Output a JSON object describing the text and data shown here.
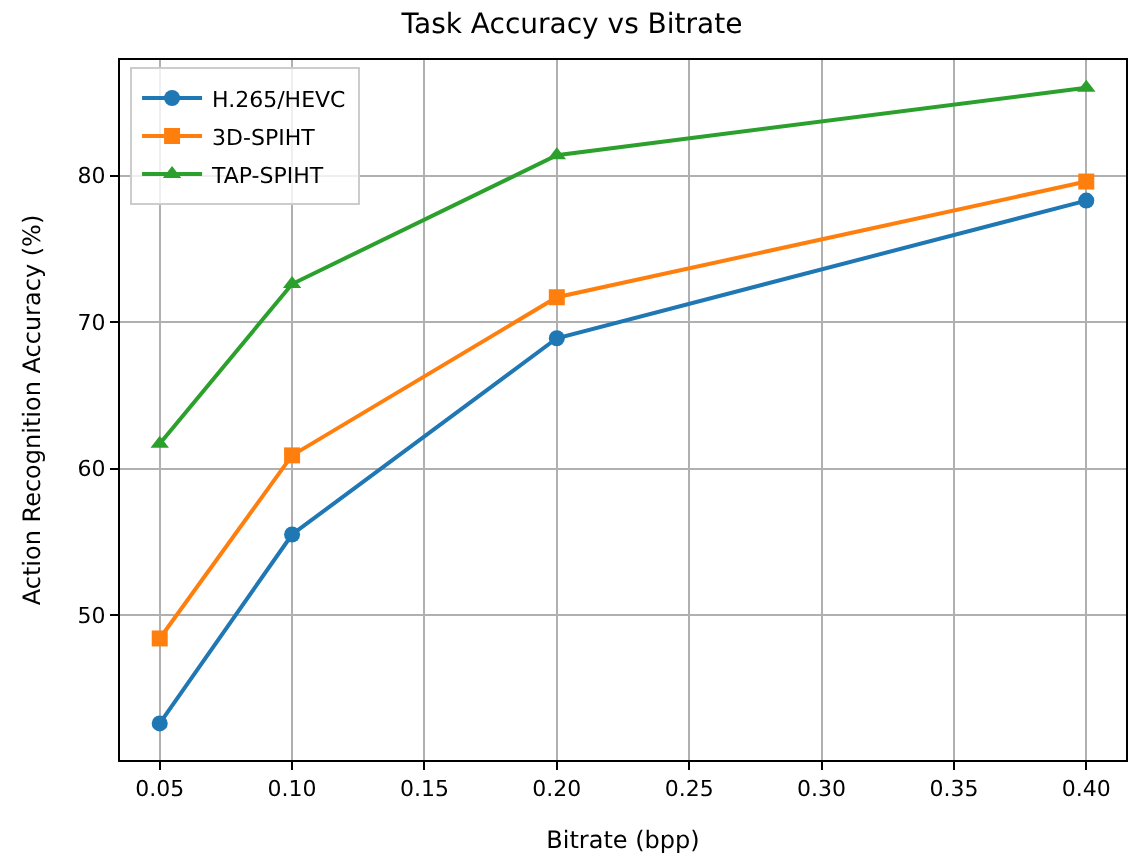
{
  "chart_data": {
    "type": "line",
    "title": "Task Accuracy vs Bitrate",
    "xlabel": "Bitrate (bpp)",
    "ylabel": "Action Recognition Accuracy (%)",
    "x": [
      0.05,
      0.1,
      0.2,
      0.4
    ],
    "series": [
      {
        "name": "H.265/HEVC",
        "color": "#1f77b4",
        "marker": "circle",
        "values": [
          42.6,
          55.5,
          68.9,
          78.3
        ]
      },
      {
        "name": "3D-SPIHT",
        "color": "#ff7f0e",
        "marker": "square",
        "values": [
          48.4,
          60.9,
          71.7,
          79.6
        ]
      },
      {
        "name": "TAP-SPIHT",
        "color": "#2ca02c",
        "marker": "triangle",
        "values": [
          61.7,
          72.6,
          81.4,
          86.0
        ]
      }
    ],
    "xlim": [
      0.035,
      0.415
    ],
    "ylim": [
      40.1,
      87.9
    ],
    "xticks": [
      {
        "value": 0.05,
        "label": "0.05"
      },
      {
        "value": 0.1,
        "label": "0.10"
      },
      {
        "value": 0.15,
        "label": "0.15"
      },
      {
        "value": 0.2,
        "label": "0.20"
      },
      {
        "value": 0.25,
        "label": "0.25"
      },
      {
        "value": 0.3,
        "label": "0.30"
      },
      {
        "value": 0.35,
        "label": "0.35"
      },
      {
        "value": 0.4,
        "label": "0.40"
      }
    ],
    "yticks": [
      50,
      60,
      70,
      80
    ],
    "grid": true,
    "legend": "top left",
    "line_style": "solid"
  }
}
